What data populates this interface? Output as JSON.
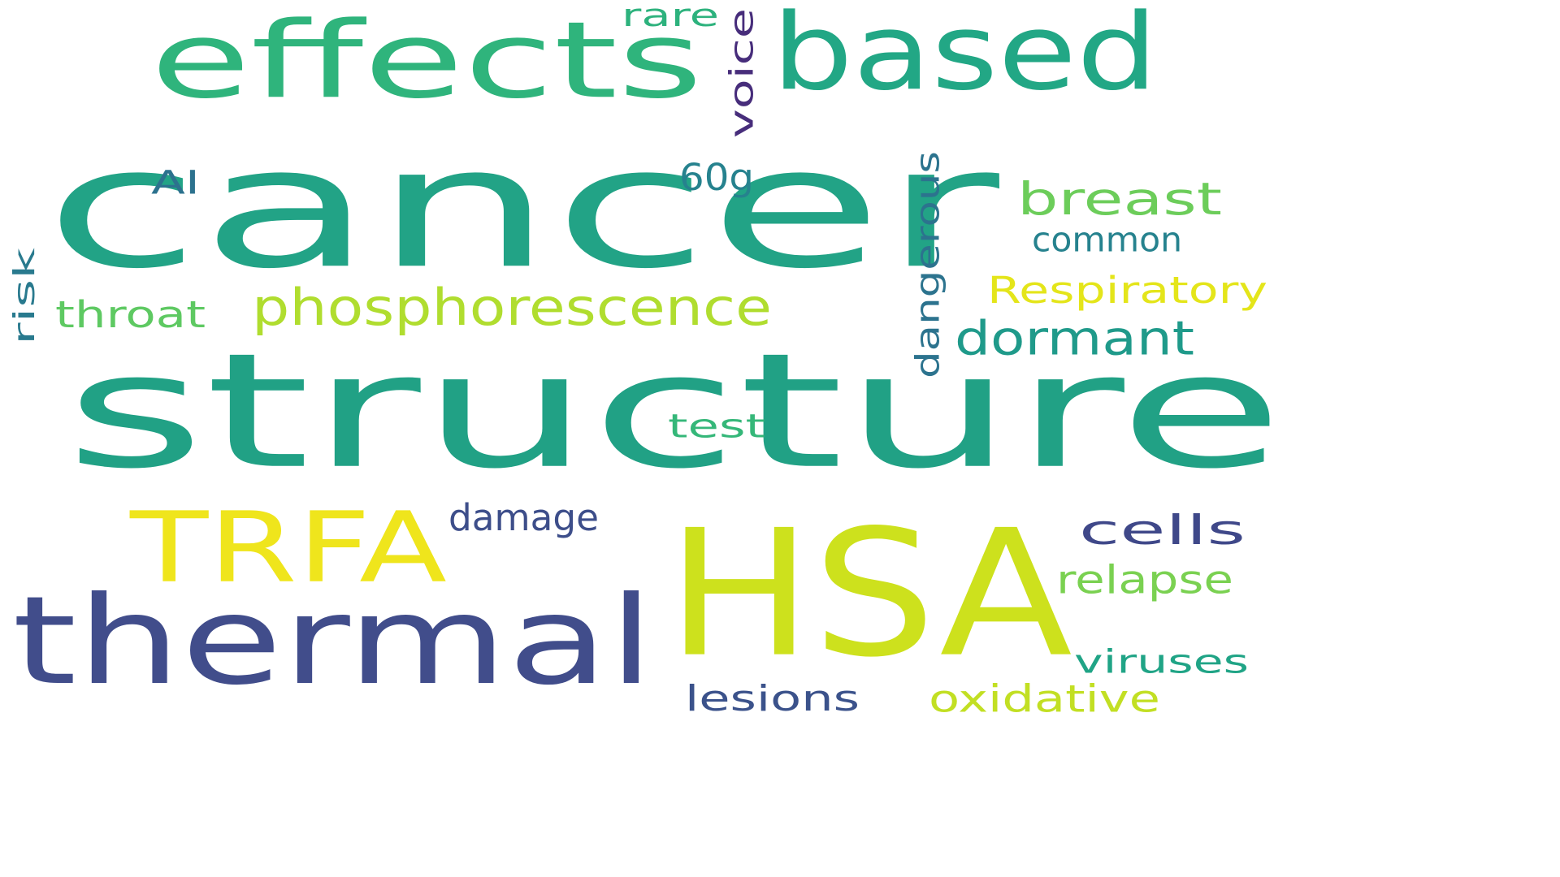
{
  "words": [
    {
      "id": "cancer",
      "text": "cancer",
      "color": "#22a386"
    },
    {
      "id": "structure",
      "text": "structure",
      "color": "#21a185"
    },
    {
      "id": "hsa",
      "text": "HSA",
      "color": "#cde11d"
    },
    {
      "id": "thermal",
      "text": "thermal",
      "color": "#414d8b"
    },
    {
      "id": "trfa",
      "text": "TRFA",
      "color": "#efe51c"
    },
    {
      "id": "effects",
      "text": "effects",
      "color": "#2fb47c"
    },
    {
      "id": "based",
      "text": "based",
      "color": "#22a785"
    },
    {
      "id": "phosphorescence",
      "text": "phosphorescence",
      "color": "#b0dd2f"
    },
    {
      "id": "breast",
      "text": "breast",
      "color": "#6ccd5a"
    },
    {
      "id": "dormant",
      "text": "dormant",
      "color": "#1f9a8a"
    },
    {
      "id": "cells",
      "text": "cells",
      "color": "#3f4889"
    },
    {
      "id": "respiratory",
      "text": "Respiratory",
      "color": "#e4e51a"
    },
    {
      "id": "dangerous",
      "text": "dangerous",
      "color": "#2c738e"
    },
    {
      "id": "voice",
      "text": "voice",
      "color": "#472d7b"
    },
    {
      "id": "relapse",
      "text": "relapse",
      "color": "#7ad151"
    },
    {
      "id": "common",
      "text": "common",
      "color": "#26828e"
    },
    {
      "id": "damage",
      "text": "damage",
      "color": "#3d4e8a"
    },
    {
      "id": "viruses",
      "text": "viruses",
      "color": "#20a486"
    },
    {
      "id": "oxidative",
      "text": "oxidative",
      "color": "#c2df23"
    },
    {
      "id": "lesions",
      "text": "lesions",
      "color": "#3b528b"
    },
    {
      "id": "throat",
      "text": "throat",
      "color": "#5ec962"
    },
    {
      "id": "test",
      "text": "test",
      "color": "#35b779"
    },
    {
      "id": "rare",
      "text": "rare",
      "color": "#2db27d"
    },
    {
      "id": "60g",
      "text": "60g",
      "color": "#26828e"
    },
    {
      "id": "ai",
      "text": "AI",
      "color": "#2c728e"
    },
    {
      "id": "risk",
      "text": "risk",
      "color": "#297a8e"
    }
  ]
}
